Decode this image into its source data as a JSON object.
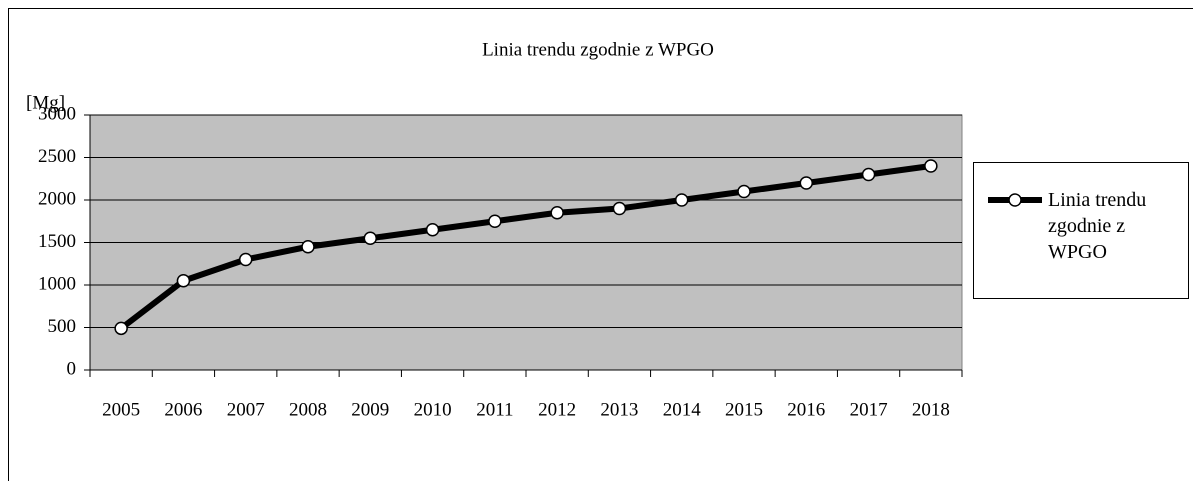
{
  "chart_data": {
    "type": "line",
    "title": "Linia trendu zgodnie z WPGO",
    "y_label": "[Mg]",
    "categories": [
      "2005",
      "2006",
      "2007",
      "2008",
      "2009",
      "2010",
      "2011",
      "2012",
      "2013",
      "2014",
      "2015",
      "2016",
      "2017",
      "2018"
    ],
    "series": [
      {
        "name": "Linia trendu zgodnie z WPGO",
        "color": "#000000",
        "values": [
          490,
          1050,
          1300,
          1450,
          1550,
          1650,
          1750,
          1850,
          1900,
          2000,
          2100,
          2200,
          2300,
          2400
        ]
      }
    ],
    "ylim": [
      0,
      3000
    ],
    "yticks": [
      0,
      500,
      1000,
      1500,
      2000,
      2500,
      3000
    ],
    "grid": true,
    "legend": "right"
  }
}
